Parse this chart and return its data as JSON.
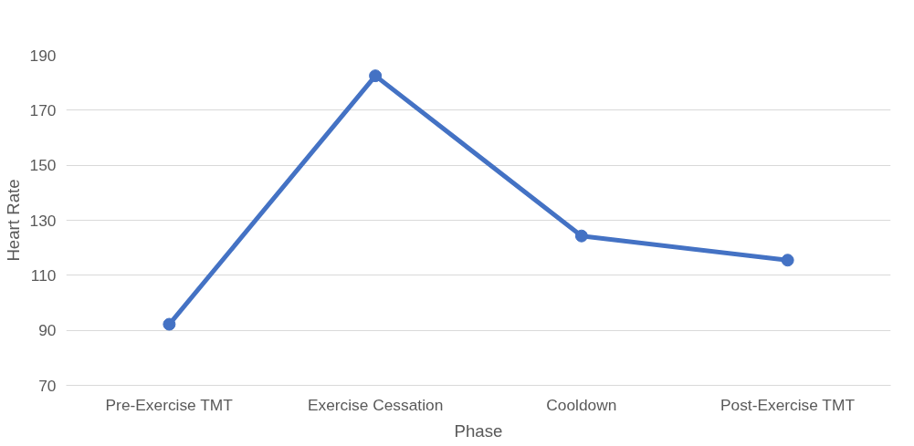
{
  "chart_data": {
    "type": "line",
    "xlabel": "Phase",
    "ylabel": "Heart Rate",
    "categories": [
      "Pre-Exercise TMT",
      "Exercise Cessation",
      "Cooldown",
      "Post-Exercise TMT"
    ],
    "series": [
      {
        "color": "#4472c4",
        "values": [
          92.2,
          182.5,
          124.3,
          115.5
        ]
      }
    ],
    "ylim": [
      70,
      190
    ],
    "yticks": [
      70,
      90,
      110,
      130,
      150,
      170,
      190
    ],
    "grid": "y",
    "marker": "circle",
    "line_style": "solid"
  }
}
